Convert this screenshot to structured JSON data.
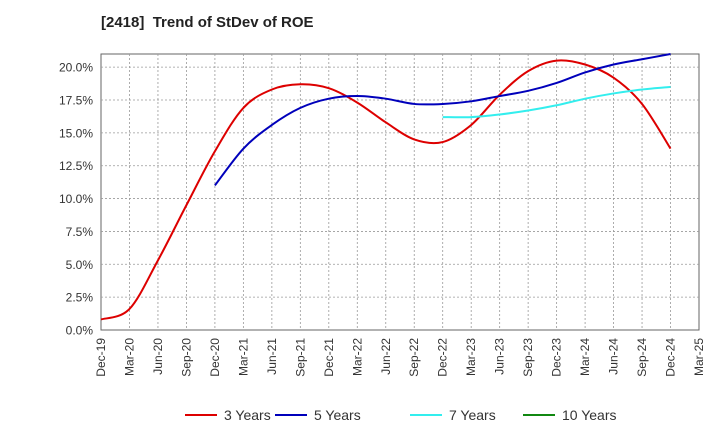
{
  "chart_data": {
    "type": "line",
    "title": "[2418]  Trend of StDev of ROE",
    "xlabel": "",
    "ylabel": "",
    "x": [
      "Dec-19",
      "Mar-20",
      "Jun-20",
      "Sep-20",
      "Dec-20",
      "Mar-21",
      "Jun-21",
      "Sep-21",
      "Dec-21",
      "Mar-22",
      "Jun-22",
      "Sep-22",
      "Dec-22",
      "Mar-23",
      "Jun-23",
      "Sep-23",
      "Dec-23",
      "Mar-24",
      "Jun-24",
      "Sep-24",
      "Dec-24",
      "Mar-25"
    ],
    "ylim": [
      0,
      21
    ],
    "yticks": [
      0,
      2.5,
      5,
      7.5,
      10,
      12.5,
      15,
      17.5,
      20
    ],
    "ytick_labels": [
      "0.0%",
      "2.5%",
      "5.0%",
      "7.5%",
      "10.0%",
      "12.5%",
      "15.0%",
      "17.5%",
      "20.0%"
    ],
    "grid": true,
    "legend_position": "bottom",
    "series": [
      {
        "name": "3 Years",
        "color": "#dd0000",
        "values": [
          0.8,
          1.6,
          5.3,
          9.5,
          13.6,
          16.9,
          18.3,
          18.7,
          18.4,
          17.3,
          15.8,
          14.5,
          14.3,
          15.6,
          17.9,
          19.7,
          20.5,
          20.2,
          19.2,
          17.2,
          13.8,
          null
        ]
      },
      {
        "name": "5 Years",
        "color": "#0000bb",
        "values": [
          null,
          null,
          null,
          null,
          11.0,
          13.8,
          15.6,
          16.9,
          17.6,
          17.8,
          17.6,
          17.2,
          17.2,
          17.4,
          17.8,
          18.2,
          18.8,
          19.6,
          20.2,
          20.6,
          21.0,
          null
        ]
      },
      {
        "name": "7 Years",
        "color": "#33eeee",
        "values": [
          null,
          null,
          null,
          null,
          null,
          null,
          null,
          null,
          null,
          null,
          null,
          null,
          16.2,
          16.2,
          16.4,
          16.7,
          17.1,
          17.6,
          18.0,
          18.3,
          18.5,
          null
        ]
      },
      {
        "name": "10 Years",
        "color": "#118811",
        "values": [
          null,
          null,
          null,
          null,
          null,
          null,
          null,
          null,
          null,
          null,
          null,
          null,
          null,
          null,
          null,
          null,
          null,
          null,
          null,
          null,
          null,
          null
        ]
      }
    ]
  }
}
